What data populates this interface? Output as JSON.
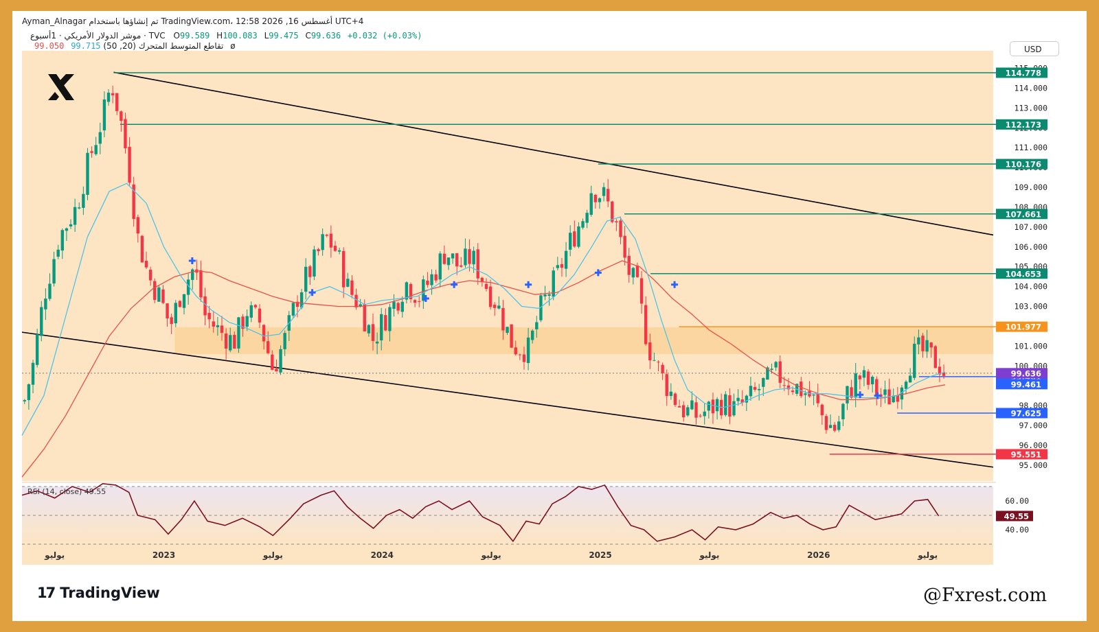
{
  "header": {
    "line1": "Ayman_Alnagar تم إنشاؤها باستخدام TradingView.com، 12:58 2026 ,16 أغسطس UTC+4",
    "symbol": "موشر الدولار الأمريكي · 1أسبوع · TVC",
    "o_label": "O",
    "o_value": "99.589",
    "h_label": "H",
    "h_value": "100.083",
    "l_label": "L",
    "l_value": "99.475",
    "c_label": "C",
    "c_value": "99.636",
    "change": "+0.032 (+0.03%)",
    "ma_label": "تقاطع المتوسط المتحرك (20, 50)",
    "ma_fast": "99.715",
    "ma_slow": "99.050",
    "ma_icon": "ø"
  },
  "currency": "USD",
  "footer": {
    "tv_logo": "TradingView",
    "tv_mark": "17",
    "watermark": "@Fxrest.com"
  },
  "colors": {
    "frame": "#e0a040",
    "plot_bg": "#fde5c4",
    "zone": "#fcd39a",
    "up": "#089981",
    "down": "#f23645",
    "ma20": "#4fc3e6",
    "ma50": "#e8504a",
    "rsi": "#7b1020",
    "level_green": "#0a8a6e",
    "level_blue": "#2962ff",
    "level_red": "#f23645",
    "level_orange": "#f7931a",
    "cross": "#2962ff"
  },
  "chart_data": {
    "type": "candlestick",
    "title": "",
    "y_axis": {
      "range": [
        94.2,
        115.4
      ],
      "ticks": [
        95,
        96,
        97,
        98,
        99,
        100,
        101,
        102,
        103,
        104,
        105,
        106,
        107,
        108,
        109,
        110,
        111,
        112,
        113,
        114,
        115
      ],
      "tick_labels": [
        "95.000",
        "96.000",
        "97.000",
        "98.000",
        "99.000",
        "100.000",
        "101.000",
        "102.000",
        "103.000",
        "104.000",
        "105.000",
        "106.000",
        "107.000",
        "108.000",
        "109.000",
        "110.000",
        "111.000",
        "112.000",
        "113.000",
        "114.000",
        "115.000"
      ]
    },
    "x_axis": {
      "range": [
        2022.35,
        2026.8
      ],
      "labels": [
        {
          "t": 2022.5,
          "label": "يوليو"
        },
        {
          "t": 2023.0,
          "label": "2023"
        },
        {
          "t": 2023.5,
          "label": "يوليو"
        },
        {
          "t": 2024.0,
          "label": "2024"
        },
        {
          "t": 2024.5,
          "label": "يوليو"
        },
        {
          "t": 2025.0,
          "label": "2025"
        },
        {
          "t": 2025.5,
          "label": "يوليو"
        },
        {
          "t": 2026.0,
          "label": "2026"
        },
        {
          "t": 2026.5,
          "label": "يوليو"
        }
      ]
    },
    "price_path": [
      [
        2022.36,
        98.2
      ],
      [
        2022.4,
        100.0
      ],
      [
        2022.45,
        103.5
      ],
      [
        2022.52,
        106.5
      ],
      [
        2022.6,
        108.0
      ],
      [
        2022.66,
        110.5
      ],
      [
        2022.72,
        112.5
      ],
      [
        2022.76,
        114.3
      ],
      [
        2022.8,
        112.5
      ],
      [
        2022.84,
        110.0
      ],
      [
        2022.88,
        106.5
      ],
      [
        2022.93,
        104.5
      ],
      [
        2022.98,
        103.5
      ],
      [
        2023.03,
        102.0
      ],
      [
        2023.08,
        103.8
      ],
      [
        2023.14,
        105.0
      ],
      [
        2023.19,
        102.5
      ],
      [
        2023.25,
        101.8
      ],
      [
        2023.32,
        101.2
      ],
      [
        2023.38,
        102.8
      ],
      [
        2023.44,
        102.2
      ],
      [
        2023.5,
        99.8
      ],
      [
        2023.56,
        101.5
      ],
      [
        2023.62,
        103.8
      ],
      [
        2023.68,
        105.0
      ],
      [
        2023.74,
        106.5
      ],
      [
        2023.79,
        105.8
      ],
      [
        2023.84,
        104.0
      ],
      [
        2023.9,
        103.0
      ],
      [
        2023.96,
        101.3
      ],
      [
        2024.0,
        102.2
      ],
      [
        2024.06,
        103.2
      ],
      [
        2024.11,
        104.2
      ],
      [
        2024.17,
        103.5
      ],
      [
        2024.23,
        104.5
      ],
      [
        2024.29,
        105.8
      ],
      [
        2024.35,
        105.0
      ],
      [
        2024.41,
        105.5
      ],
      [
        2024.47,
        104.2
      ],
      [
        2024.53,
        103.0
      ],
      [
        2024.6,
        101.0
      ],
      [
        2024.67,
        100.8
      ],
      [
        2024.73,
        103.0
      ],
      [
        2024.8,
        104.5
      ],
      [
        2024.86,
        106.2
      ],
      [
        2024.92,
        107.5
      ],
      [
        2024.96,
        109.0
      ],
      [
        2025.02,
        108.5
      ],
      [
        2025.07,
        107.2
      ],
      [
        2025.12,
        105.0
      ],
      [
        2025.17,
        103.8
      ],
      [
        2025.22,
        101.0
      ],
      [
        2025.28,
        99.5
      ],
      [
        2025.33,
        98.5
      ],
      [
        2025.38,
        97.8
      ],
      [
        2025.44,
        97.5
      ],
      [
        2025.5,
        97.8
      ],
      [
        2025.55,
        98.2
      ],
      [
        2025.62,
        97.8
      ],
      [
        2025.68,
        98.3
      ],
      [
        2025.74,
        99.0
      ],
      [
        2025.8,
        99.6
      ],
      [
        2025.86,
        99.2
      ],
      [
        2025.92,
        98.8
      ],
      [
        2025.97,
        98.4
      ],
      [
        2026.03,
        97.2
      ],
      [
        2026.08,
        96.8
      ],
      [
        2026.13,
        98.5
      ],
      [
        2026.18,
        99.5
      ],
      [
        2026.24,
        99.0
      ],
      [
        2026.3,
        98.3
      ],
      [
        2026.35,
        98.6
      ],
      [
        2026.4,
        99.8
      ],
      [
        2026.45,
        100.8
      ],
      [
        2026.5,
        100.6
      ],
      [
        2026.55,
        100.1
      ],
      [
        2026.58,
        99.6
      ]
    ],
    "ma20_path": [
      [
        2022.35,
        96.5
      ],
      [
        2022.45,
        98.5
      ],
      [
        2022.55,
        102.5
      ],
      [
        2022.65,
        106.5
      ],
      [
        2022.75,
        108.8
      ],
      [
        2022.83,
        109.2
      ],
      [
        2022.92,
        108.2
      ],
      [
        2023.0,
        106.0
      ],
      [
        2023.08,
        104.5
      ],
      [
        2023.15,
        103.5
      ],
      [
        2023.22,
        102.8
      ],
      [
        2023.3,
        102.2
      ],
      [
        2023.38,
        101.9
      ],
      [
        2023.46,
        101.5
      ],
      [
        2023.53,
        101.6
      ],
      [
        2023.6,
        102.5
      ],
      [
        2023.68,
        103.7
      ],
      [
        2023.76,
        104.0
      ],
      [
        2023.84,
        103.6
      ],
      [
        2023.92,
        103.1
      ],
      [
        2024.0,
        103.3
      ],
      [
        2024.08,
        103.4
      ],
      [
        2024.16,
        103.5
      ],
      [
        2024.24,
        104.0
      ],
      [
        2024.32,
        104.6
      ],
      [
        2024.4,
        105.0
      ],
      [
        2024.48,
        104.6
      ],
      [
        2024.56,
        103.9
      ],
      [
        2024.64,
        103.0
      ],
      [
        2024.72,
        102.9
      ],
      [
        2024.8,
        103.6
      ],
      [
        2024.88,
        104.6
      ],
      [
        2024.96,
        106.0
      ],
      [
        2025.03,
        107.3
      ],
      [
        2025.09,
        107.5
      ],
      [
        2025.16,
        106.4
      ],
      [
        2025.22,
        104.5
      ],
      [
        2025.28,
        102.3
      ],
      [
        2025.34,
        100.3
      ],
      [
        2025.4,
        98.8
      ],
      [
        2025.48,
        98.1
      ],
      [
        2025.56,
        97.9
      ],
      [
        2025.64,
        98.1
      ],
      [
        2025.72,
        98.5
      ],
      [
        2025.8,
        98.8
      ],
      [
        2025.88,
        98.9
      ],
      [
        2025.96,
        98.6
      ],
      [
        2026.04,
        98.6
      ],
      [
        2026.12,
        98.5
      ],
      [
        2026.2,
        98.4
      ],
      [
        2026.28,
        98.4
      ],
      [
        2026.36,
        98.5
      ],
      [
        2026.44,
        99.1
      ],
      [
        2026.52,
        99.5
      ],
      [
        2026.58,
        99.7
      ]
    ],
    "ma50_path": [
      [
        2022.35,
        94.4
      ],
      [
        2022.45,
        95.8
      ],
      [
        2022.55,
        97.5
      ],
      [
        2022.65,
        99.5
      ],
      [
        2022.75,
        101.5
      ],
      [
        2022.85,
        102.9
      ],
      [
        2022.95,
        103.9
      ],
      [
        2023.05,
        104.5
      ],
      [
        2023.15,
        104.8
      ],
      [
        2023.22,
        104.7
      ],
      [
        2023.3,
        104.3
      ],
      [
        2023.4,
        103.9
      ],
      [
        2023.5,
        103.5
      ],
      [
        2023.6,
        103.2
      ],
      [
        2023.7,
        103.1
      ],
      [
        2023.8,
        103.0
      ],
      [
        2023.9,
        103.0
      ],
      [
        2024.0,
        103.1
      ],
      [
        2024.1,
        103.4
      ],
      [
        2024.2,
        103.8
      ],
      [
        2024.3,
        104.1
      ],
      [
        2024.4,
        104.3
      ],
      [
        2024.5,
        104.2
      ],
      [
        2024.6,
        103.9
      ],
      [
        2024.7,
        103.6
      ],
      [
        2024.8,
        103.7
      ],
      [
        2024.9,
        104.2
      ],
      [
        2025.0,
        104.8
      ],
      [
        2025.1,
        105.3
      ],
      [
        2025.18,
        105.0
      ],
      [
        2025.25,
        104.3
      ],
      [
        2025.33,
        103.4
      ],
      [
        2025.42,
        102.6
      ],
      [
        2025.5,
        101.8
      ],
      [
        2025.6,
        101.1
      ],
      [
        2025.7,
        100.3
      ],
      [
        2025.8,
        99.6
      ],
      [
        2025.9,
        99.0
      ],
      [
        2026.0,
        98.6
      ],
      [
        2026.1,
        98.3
      ],
      [
        2026.2,
        98.3
      ],
      [
        2026.3,
        98.4
      ],
      [
        2026.4,
        98.6
      ],
      [
        2026.5,
        98.9
      ],
      [
        2026.58,
        99.05
      ]
    ],
    "crosses": [
      [
        2023.13,
        105.3
      ],
      [
        2023.68,
        103.7
      ],
      [
        2024.2,
        103.4
      ],
      [
        2024.33,
        104.1
      ],
      [
        2024.67,
        104.1
      ],
      [
        2024.99,
        104.7
      ],
      [
        2025.34,
        104.1
      ],
      [
        2026.19,
        98.55
      ],
      [
        2026.27,
        98.5
      ]
    ],
    "resistance_zone": {
      "from": 100.6,
      "to": 101.95,
      "x_start": 2023.05
    },
    "channel": {
      "upper": {
        "from": [
          2022.77,
          114.8
        ],
        "to": [
          2026.8,
          106.6
        ]
      },
      "lower": {
        "from": [
          2022.35,
          101.7
        ],
        "to": [
          2026.8,
          94.9
        ]
      }
    },
    "levels": [
      {
        "value": 114.778,
        "label": "114.778",
        "color": "green",
        "x_start": 2022.77
      },
      {
        "value": 112.173,
        "label": "112.173",
        "color": "green",
        "x_start": 2022.8
      },
      {
        "value": 110.176,
        "label": "110.176",
        "color": "green",
        "x_start": 2024.99
      },
      {
        "value": 107.661,
        "label": "107.661",
        "color": "green",
        "x_start": 2025.11
      },
      {
        "value": 104.653,
        "label": "104.653",
        "color": "green",
        "x_start": 2025.23
      },
      {
        "value": 101.977,
        "label": "101.977",
        "color": "orange",
        "x_start": 2025.36
      },
      {
        "value": 99.461,
        "label": "99.461",
        "color": "blue",
        "x_start": 2026.46
      },
      {
        "value": 97.625,
        "label": "97.625",
        "color": "blue",
        "x_start": 2026.36
      },
      {
        "value": 95.551,
        "label": "95.551",
        "color": "red",
        "x_start": 2026.05
      }
    ],
    "price_tags": [
      {
        "value": 99.636,
        "label": "99.636",
        "color": "#7e3fd0"
      },
      {
        "value": 99.461,
        "label": "99.461",
        "color": "#2962ff"
      }
    ],
    "current_price": 99.636,
    "rsi": {
      "label": "RSI (14, close)",
      "value_text": "49.55",
      "range": [
        30,
        70
      ],
      "ticks": [
        40,
        60
      ],
      "tick_labels": [
        "40.00",
        "60.00"
      ],
      "guides": [
        30,
        50,
        70
      ],
      "path": [
        [
          2022.35,
          64
        ],
        [
          2022.42,
          67
        ],
        [
          2022.5,
          62
        ],
        [
          2022.58,
          70
        ],
        [
          2022.66,
          66
        ],
        [
          2022.72,
          72
        ],
        [
          2022.78,
          71
        ],
        [
          2022.84,
          66
        ],
        [
          2022.88,
          50
        ],
        [
          2022.96,
          47
        ],
        [
          2023.02,
          37
        ],
        [
          2023.08,
          47
        ],
        [
          2023.14,
          60
        ],
        [
          2023.2,
          46
        ],
        [
          2023.28,
          43
        ],
        [
          2023.36,
          48
        ],
        [
          2023.44,
          42
        ],
        [
          2023.5,
          36
        ],
        [
          2023.58,
          48
        ],
        [
          2023.64,
          58
        ],
        [
          2023.72,
          64
        ],
        [
          2023.78,
          67
        ],
        [
          2023.84,
          56
        ],
        [
          2023.9,
          48
        ],
        [
          2023.96,
          41
        ],
        [
          2024.02,
          50
        ],
        [
          2024.08,
          54
        ],
        [
          2024.14,
          48
        ],
        [
          2024.2,
          56
        ],
        [
          2024.26,
          60
        ],
        [
          2024.32,
          54
        ],
        [
          2024.4,
          60
        ],
        [
          2024.46,
          49
        ],
        [
          2024.54,
          43
        ],
        [
          2024.6,
          32
        ],
        [
          2024.66,
          46
        ],
        [
          2024.72,
          44
        ],
        [
          2024.78,
          58
        ],
        [
          2024.84,
          63
        ],
        [
          2024.9,
          70
        ],
        [
          2024.96,
          68
        ],
        [
          2025.02,
          71
        ],
        [
          2025.08,
          56
        ],
        [
          2025.14,
          43
        ],
        [
          2025.2,
          40
        ],
        [
          2025.26,
          32
        ],
        [
          2025.34,
          35
        ],
        [
          2025.42,
          40
        ],
        [
          2025.48,
          33
        ],
        [
          2025.54,
          42
        ],
        [
          2025.62,
          40
        ],
        [
          2025.7,
          44
        ],
        [
          2025.78,
          52
        ],
        [
          2025.84,
          48
        ],
        [
          2025.9,
          50
        ],
        [
          2025.96,
          44
        ],
        [
          2026.02,
          40
        ],
        [
          2026.08,
          42
        ],
        [
          2026.14,
          57
        ],
        [
          2026.2,
          52
        ],
        [
          2026.26,
          47
        ],
        [
          2026.32,
          49
        ],
        [
          2026.38,
          51
        ],
        [
          2026.44,
          60
        ],
        [
          2026.5,
          61
        ],
        [
          2026.55,
          49.55
        ]
      ]
    }
  }
}
